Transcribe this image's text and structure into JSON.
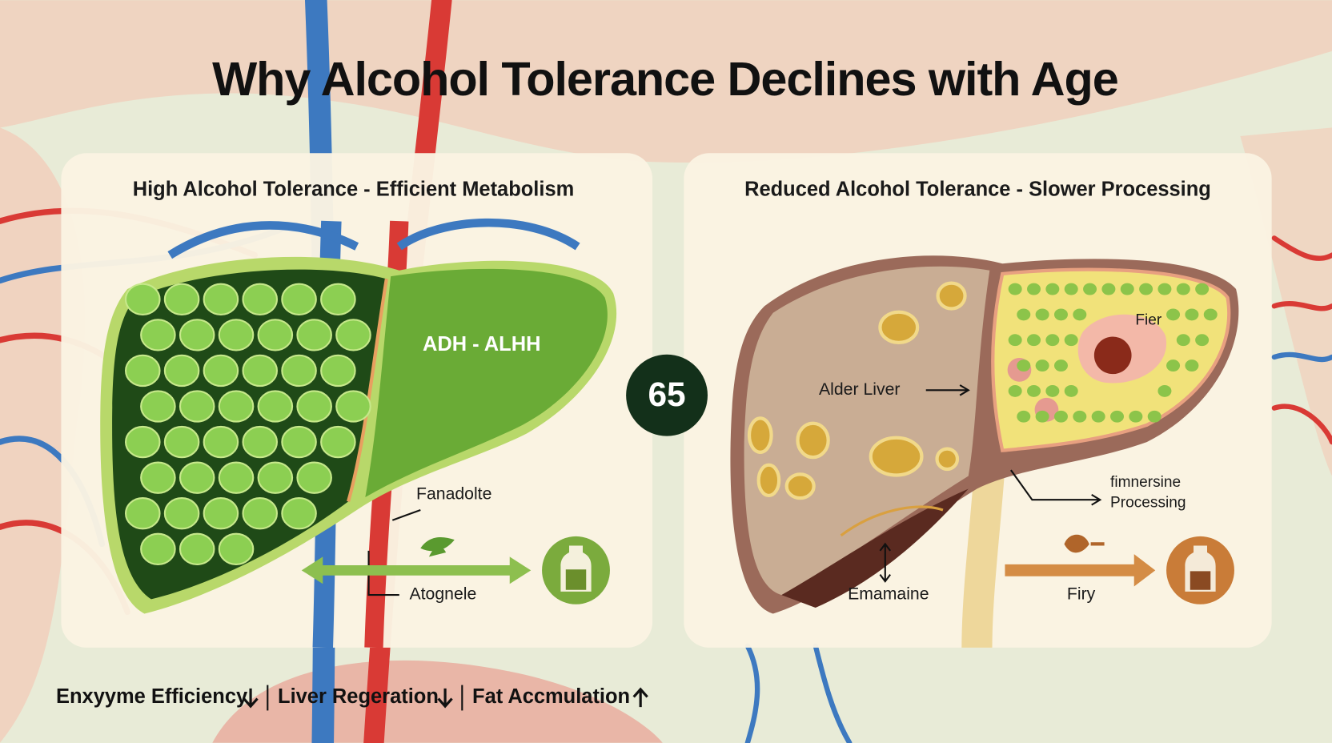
{
  "title": "Why Alcohol Tolerance Declines with Age",
  "badge": "65",
  "panels": [
    {
      "title": "High Alcohol Tolerance - Efficient Metabolism",
      "labels": [
        "ADH - ALHH",
        "Fanadolte",
        "Atognele"
      ]
    },
    {
      "title": "Reduced Alcohol Tolerance - Slower Processing",
      "labels": [
        "Fier",
        "Alder Liver",
        "fimnersine",
        "Processing",
        "Emamaine",
        "Firy"
      ]
    }
  ],
  "footer": [
    "Enxyyme Efficiency",
    "Liver Regeration",
    "Fat Accmulation"
  ]
}
